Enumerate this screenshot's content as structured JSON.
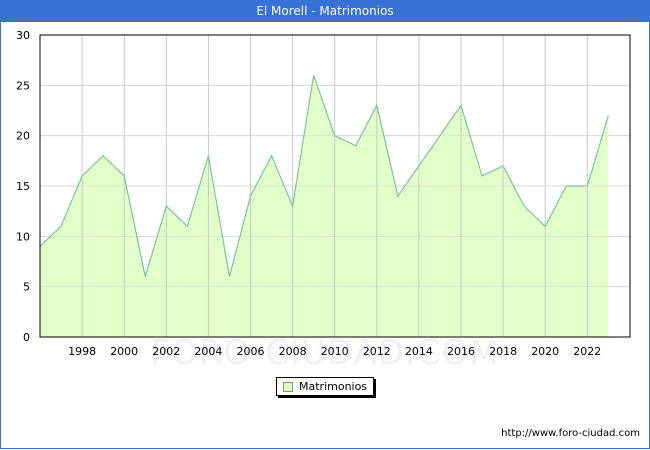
{
  "header": {
    "title": "El Morell - Matrimonios"
  },
  "legend": {
    "label": "Matrimonios",
    "swatch_color": "#e2ffc9"
  },
  "footer": {
    "url": "http://www.foro-ciudad.com"
  },
  "watermark": "FORO-CIUDAD.COM",
  "colors": {
    "titlebar": "#3671d6",
    "area_fill": "#e2ffc9",
    "line": "#7cc49a",
    "grid": "#d8d8d8"
  },
  "chart_data": {
    "type": "area",
    "title": "El Morell - Matrimonios",
    "xlabel": "",
    "ylabel": "",
    "x": [
      1996,
      1997,
      1998,
      1999,
      2000,
      2001,
      2002,
      2003,
      2004,
      2005,
      2006,
      2007,
      2008,
      2009,
      2010,
      2011,
      2012,
      2013,
      2014,
      2015,
      2016,
      2017,
      2018,
      2019,
      2020,
      2021,
      2022,
      2023
    ],
    "series": [
      {
        "name": "Matrimonios",
        "values": [
          9,
          11,
          16,
          18,
          16,
          6,
          13,
          11,
          18,
          6,
          14,
          18,
          13,
          26,
          20,
          19,
          23,
          14,
          17,
          20,
          23,
          16,
          17,
          13,
          11,
          15,
          15,
          22
        ]
      }
    ],
    "ylim": [
      0,
      30
    ],
    "yticks": [
      0,
      5,
      10,
      15,
      20,
      25,
      30
    ],
    "xticks": [
      1998,
      2000,
      2002,
      2004,
      2006,
      2008,
      2010,
      2012,
      2014,
      2016,
      2018,
      2020,
      2022
    ],
    "grid": true,
    "legend_position": "bottom-center"
  }
}
